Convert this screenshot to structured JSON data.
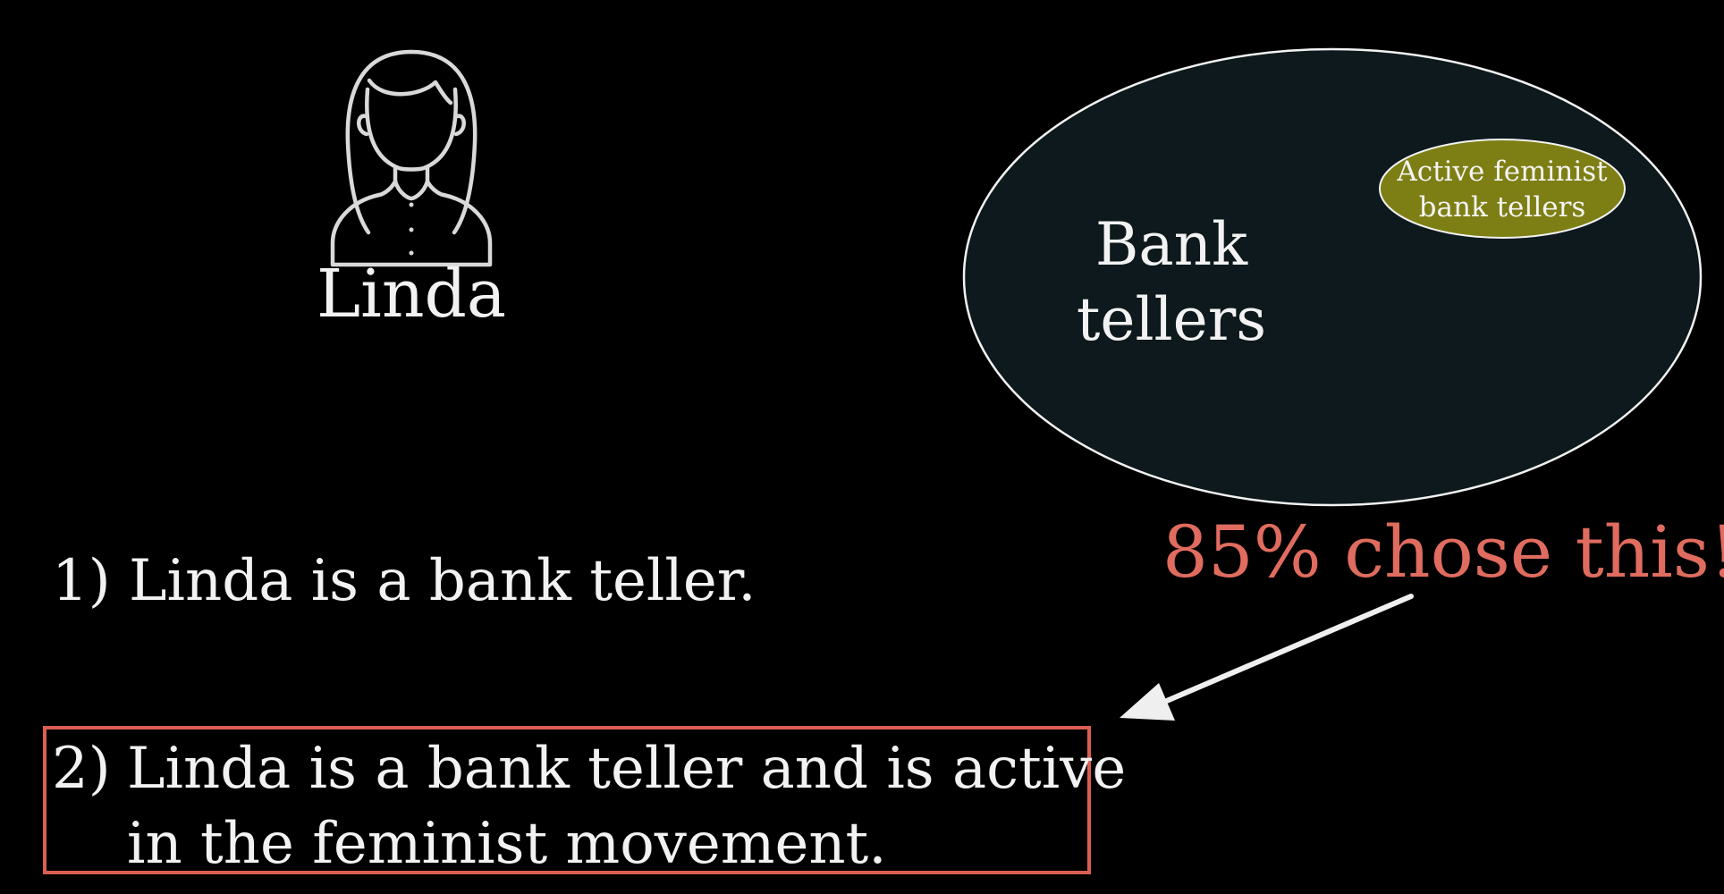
{
  "person": {
    "name": "Linda",
    "icon": "woman-avatar-icon"
  },
  "venn": {
    "outer_label_line1": "Bank",
    "outer_label_line2": "tellers",
    "inner_label_line1": "Active feminist",
    "inner_label_line2": "bank tellers"
  },
  "callout": {
    "text": "85% chose this!"
  },
  "options": [
    {
      "number": "1)",
      "text": "Linda is a bank teller."
    },
    {
      "number": "2)",
      "line1": "Linda is a bank teller and is active",
      "line2": "in the feminist movement."
    }
  ],
  "colors": {
    "background": "#000000",
    "outer_set_fill": "#0d191c",
    "inner_set_fill": "#7d7f14",
    "highlight": "#dc5e52",
    "text": "#f2f2f2"
  }
}
